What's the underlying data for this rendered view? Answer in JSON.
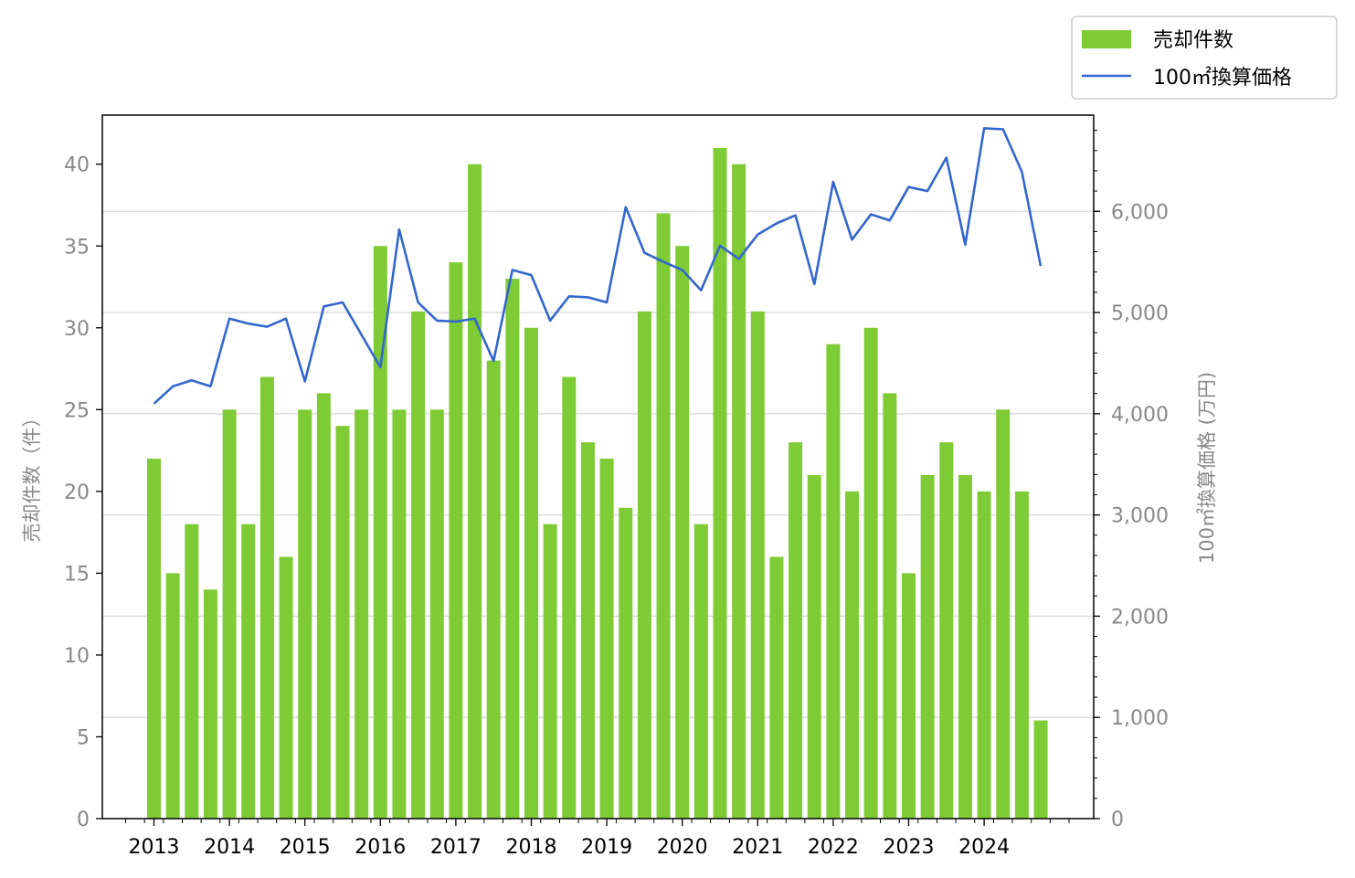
{
  "chart_data": {
    "type": "bar",
    "y_left_label": "売却件数（件）",
    "y_right_label": "100㎡換算価格 (万円)",
    "y_left_lim": [
      0,
      43
    ],
    "y_left_ticks": [
      "0",
      "5",
      "10",
      "15",
      "20",
      "25",
      "30",
      "35",
      "40"
    ],
    "y_right_lim": [
      0,
      6950
    ],
    "y_right_ticks": [
      "0",
      "1,000",
      "2,000",
      "3,000",
      "4,000",
      "5,000",
      "6,000"
    ],
    "x_tick_labels": [
      "2013",
      "2014",
      "2015",
      "2016",
      "2017",
      "2018",
      "2019",
      "2020",
      "2021",
      "2022",
      "2023",
      "2024"
    ],
    "grid": "horizontal at right-axis major ticks",
    "legend_position": "top-right, outside the plot",
    "colors": {
      "bars": "#7ECB35",
      "line": "#3366CC"
    },
    "series": [
      {
        "name": "売却件数",
        "type": "bar",
        "axis": "left",
        "values": [
          22,
          15,
          18,
          14,
          25,
          18,
          27,
          16,
          25,
          26,
          24,
          25,
          35,
          25,
          31,
          25,
          34,
          40,
          28,
          33,
          30,
          18,
          27,
          23,
          22,
          19,
          31,
          37,
          35,
          18,
          41,
          40,
          31,
          16,
          23,
          21,
          29,
          20,
          30,
          26,
          15,
          21,
          23,
          21,
          20,
          25,
          20,
          6
        ]
      },
      {
        "name": "100㎡換算価格",
        "type": "line",
        "axis": "right",
        "values": [
          4100,
          4270,
          4330,
          4270,
          4940,
          4890,
          4860,
          4940,
          4320,
          5060,
          5100,
          4780,
          4460,
          5820,
          5100,
          4920,
          4910,
          4940,
          4520,
          5420,
          5370,
          4920,
          5160,
          5150,
          5100,
          6040,
          5590,
          5500,
          5420,
          5220,
          5660,
          5530,
          5770,
          5880,
          5960,
          5280,
          6290,
          5720,
          5970,
          5910,
          6240,
          6200,
          6530,
          5670,
          6820,
          6810,
          6390,
          5460
        ]
      }
    ]
  }
}
